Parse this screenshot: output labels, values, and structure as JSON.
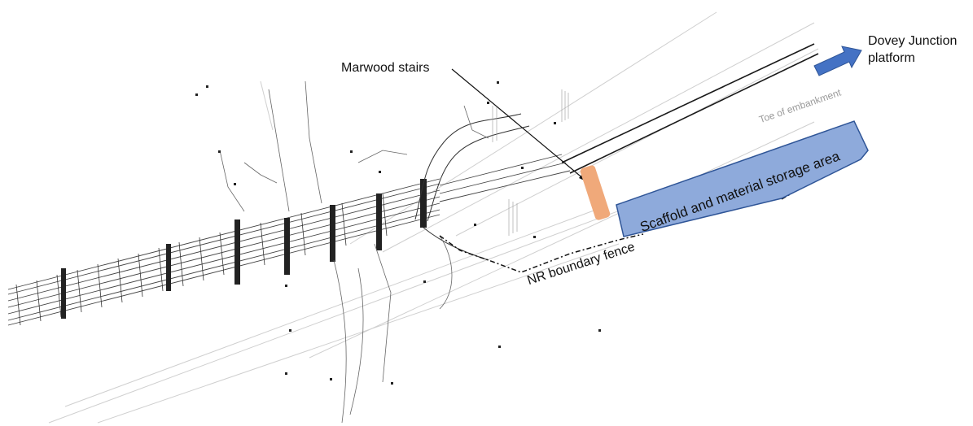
{
  "labels": {
    "stairs": "Marwood stairs",
    "platform": "Dovey Junction\nplatform",
    "toe": "Toe of embankment",
    "storage": "Scaffold and material storage area",
    "fence": "NR boundary fence"
  },
  "colors": {
    "stairs_fill": "#f0a97a",
    "storage_fill": "#8eaadb",
    "storage_edge": "#2f5597",
    "arrow_fill": "#4472c4",
    "drawing_line": "#555555",
    "faint_line": "#c8c8c8"
  }
}
